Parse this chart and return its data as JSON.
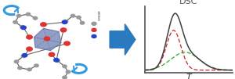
{
  "dsc_title": "DSC",
  "xlabel": "T",
  "bg_color": "#ffffff",
  "curve_black_color": "#404040",
  "curve_red_color": "#cc2222",
  "curve_green_color": "#33aa33",
  "arrow_color": "#2a7abf",
  "figsize": [
    3.0,
    1.01
  ],
  "dpi": 100,
  "oct_face": "#8090bb",
  "oct_edge": "#6070aa",
  "atom_red": "#dd3333",
  "atom_blue": "#2244cc",
  "atom_grey": "#999999",
  "bond_color": "#666666",
  "curve_arrow_color": "#3399dd"
}
